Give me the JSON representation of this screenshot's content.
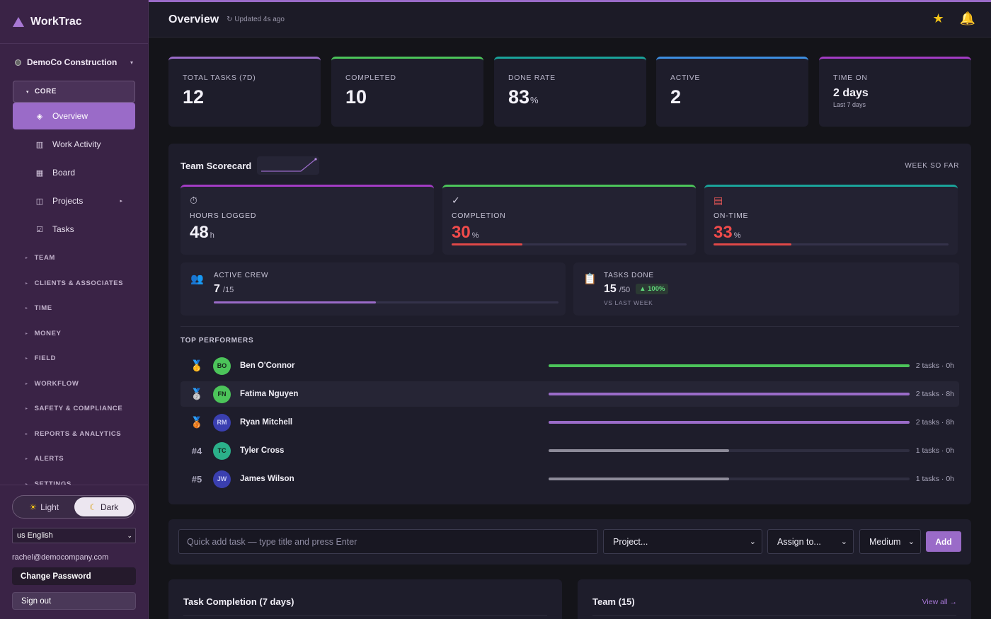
{
  "app": {
    "name": "WorkTrac"
  },
  "org": {
    "name": "DemoCo Construction"
  },
  "sidebar": {
    "core_label": "CORE",
    "core_items": [
      {
        "label": "Overview",
        "icon": "diamond-icon"
      },
      {
        "label": "Work Activity",
        "icon": "bar-chart-icon"
      },
      {
        "label": "Board",
        "icon": "grid-icon"
      },
      {
        "label": "Projects",
        "icon": "columns-icon"
      },
      {
        "label": "Tasks",
        "icon": "checkbox-icon"
      }
    ],
    "sections": [
      "TEAM",
      "CLIENTS & ASSOCIATES",
      "TIME",
      "MONEY",
      "FIELD",
      "WORKFLOW",
      "SAFETY & COMPLIANCE",
      "REPORTS & ANALYTICS",
      "ALERTS",
      "SETTINGS"
    ],
    "theme": {
      "light": "Light",
      "dark": "Dark",
      "selected": "Dark"
    },
    "language": "us English",
    "email": "rachel@democompany.com",
    "change_password": "Change Password",
    "sign_out": "Sign out"
  },
  "header": {
    "title": "Overview",
    "updated": "↻ Updated 4s ago"
  },
  "kpis": [
    {
      "label": "TOTAL TASKS (7D)",
      "value": "12",
      "unit": "",
      "color": "#9a6bc8"
    },
    {
      "label": "COMPLETED",
      "value": "10",
      "unit": "",
      "color": "#4cc45a"
    },
    {
      "label": "DONE RATE",
      "value": "83",
      "unit": "%",
      "color": "#1aa39a"
    },
    {
      "label": "ACTIVE",
      "value": "2",
      "unit": "",
      "color": "#3d8ee0"
    },
    {
      "label": "TIME ON",
      "value": "2 days",
      "sub": "Last 7 days",
      "color": "#a23cc4"
    }
  ],
  "scorecard": {
    "title": "Team Scorecard",
    "period": "WEEK SO FAR",
    "hours": {
      "label": "HOURS LOGGED",
      "value": "48",
      "unit": "h",
      "color": "#a23cc4"
    },
    "completion": {
      "label": "COMPLETION",
      "value": "30",
      "unit": "%",
      "progress": 0.3,
      "color": "#4cc45a"
    },
    "ontime": {
      "label": "ON-TIME",
      "value": "33",
      "unit": "%",
      "progress": 0.33,
      "color": "#1aa39a"
    },
    "crew": {
      "label": "ACTIVE CREW",
      "value": "7",
      "total": "/15",
      "progress": 0.47
    },
    "tasks_done": {
      "label": "TASKS DONE",
      "value": "15",
      "total": "/50",
      "change": "▲ 100%",
      "sub": "VS LAST WEEK"
    },
    "top_title": "TOP PERFORMERS",
    "performers": [
      {
        "rank": "🥇",
        "initials": "BO",
        "name": "Ben O'Connor",
        "stat": "2 tasks · 0h",
        "progress": 1.0,
        "avatar": "#4cc45a",
        "bar": "#4cc45a"
      },
      {
        "rank": "🥈",
        "initials": "FN",
        "name": "Fatima Nguyen",
        "stat": "2 tasks · 8h",
        "progress": 1.0,
        "avatar": "#4cc45a",
        "bar": "#9a6bc8"
      },
      {
        "rank": "🥉",
        "initials": "RM",
        "name": "Ryan Mitchell",
        "stat": "2 tasks · 8h",
        "progress": 1.0,
        "avatar": "#3a3fb0",
        "bar": "#9a6bc8"
      },
      {
        "rank": "#4",
        "initials": "TC",
        "name": "Tyler Cross",
        "stat": "1 tasks · 0h",
        "progress": 0.5,
        "avatar": "#2bb08a",
        "bar": "#8d8b99"
      },
      {
        "rank": "#5",
        "initials": "JW",
        "name": "James Wilson",
        "stat": "1 tasks · 0h",
        "progress": 0.5,
        "avatar": "#3a3fb0",
        "bar": "#8d8b99"
      }
    ]
  },
  "quick_add": {
    "placeholder": "Quick add task — type title and press Enter",
    "project": "Project...",
    "assign": "Assign to...",
    "priority": "Medium",
    "add": "Add"
  },
  "panels": {
    "completion_title": "Task Completion (7 days)",
    "team_title": "Team (15)",
    "team_link": "View all →"
  }
}
